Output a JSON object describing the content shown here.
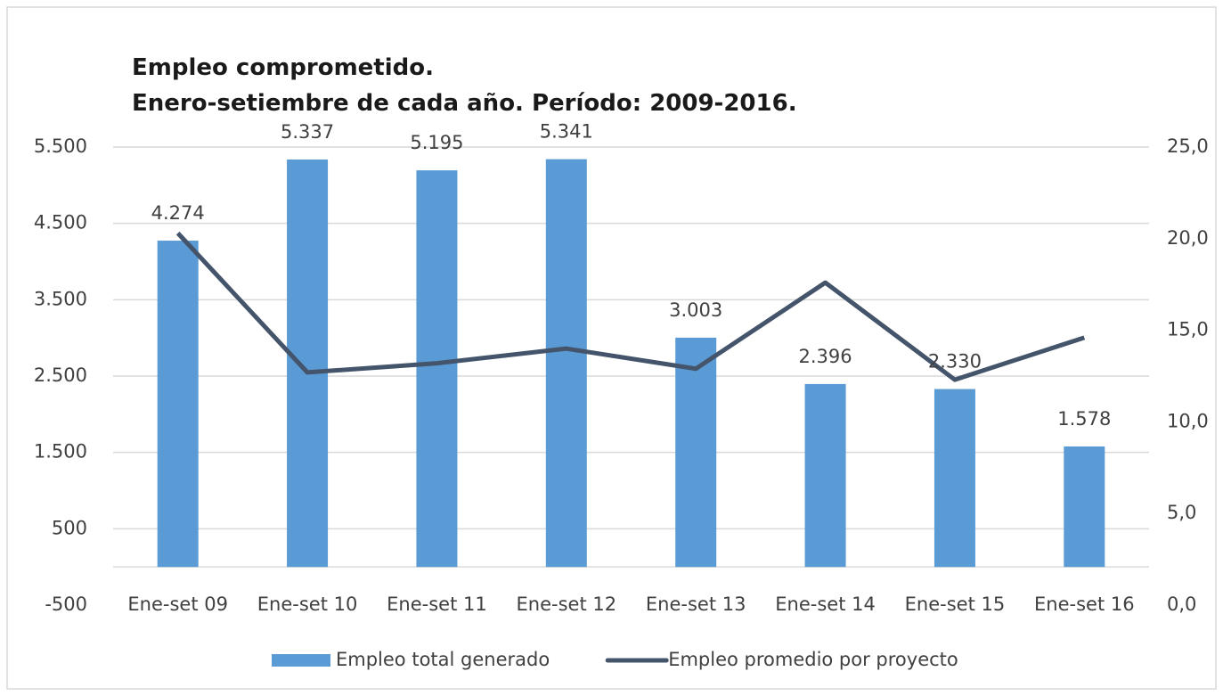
{
  "chart_data": {
    "type": "bar_line",
    "title": "Empleo comprometido.",
    "subtitle": "Enero-setiembre de cada año. Período: 2009-2016.",
    "categories": [
      "Ene-set 09",
      "Ene-set 10",
      "Ene-set 11",
      "Ene-set 12",
      "Ene-set 13",
      "Ene-set 14",
      "Ene-set 15",
      "Ene-set 16"
    ],
    "series": [
      {
        "name": "Empleo total generado",
        "color": "#5b9bd5",
        "type": "bar",
        "values": [
          4274,
          5337,
          5195,
          5341,
          3003,
          2396,
          2330,
          1578
        ],
        "value_labels": [
          "4.274",
          "5.337",
          "5.195",
          "5.341",
          "3.003",
          "2.396",
          "2.330",
          "1.578"
        ]
      },
      {
        "name": "Empleo promedio por proyecto",
        "color": "#44546a",
        "type": "line",
        "axis": "y2",
        "values": [
          20.3,
          12.7,
          13.2,
          14.0,
          12.9,
          17.6,
          12.3,
          14.6
        ]
      }
    ],
    "ylim": [
      -500,
      5500
    ],
    "yticks": [
      -500,
      500,
      {
        "value": 1500,
        "label": "1.500"
      },
      {
        "value": 2500,
        "label": "2.500"
      },
      {
        "value": 3500,
        "label": "3.500"
      },
      {
        "value": 4500,
        "label": "4.500"
      },
      {
        "value": 5500,
        "label": "5.500"
      }
    ],
    "y2lim": [
      0,
      25
    ],
    "y2ticks": [
      {
        "value": 0,
        "label": "0,0"
      },
      {
        "value": 5,
        "label": "5,0"
      },
      {
        "value": 10,
        "label": "10,0"
      },
      {
        "value": 15,
        "label": "15,0"
      },
      {
        "value": 20,
        "label": "20,0"
      },
      {
        "value": 25,
        "label": "25,0"
      }
    ],
    "grid": true,
    "legend": "bottom"
  }
}
